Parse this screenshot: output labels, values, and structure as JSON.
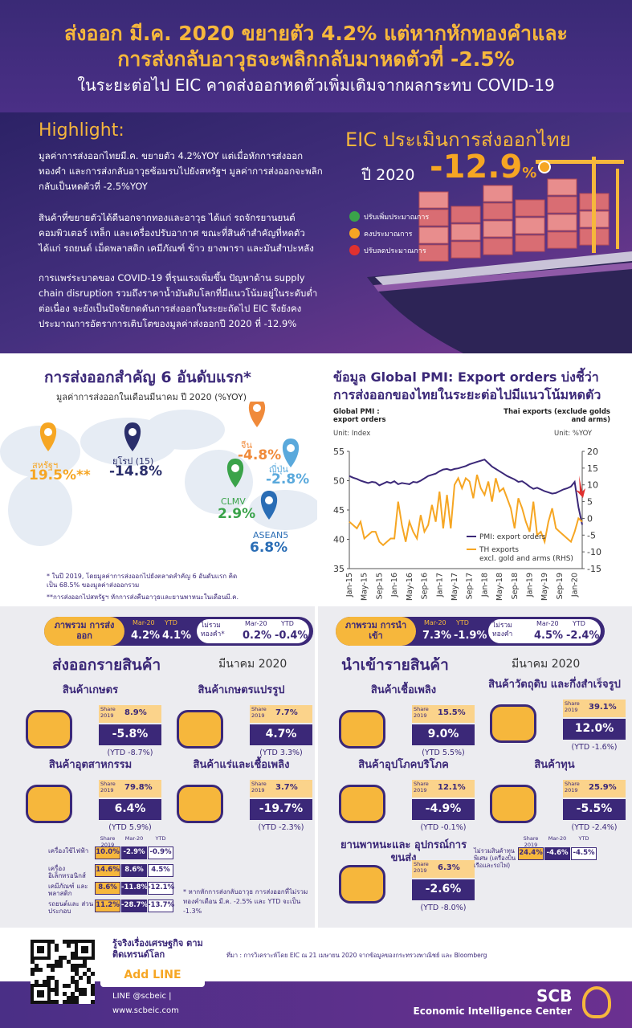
{
  "header": {
    "title_line1": "ส่งออก มี.ค. 2020 ขยายตัว 4.2% แต่หากหักทองคำและ",
    "title_line2": "การส่งกลับอาวุธจะพลิกกลับมาหดตัวที่ -2.5%",
    "subtitle": "ในระยะต่อไป EIC คาดส่งออกหดตัวเพิ่มเติมจากผลกระทบ COVID-19"
  },
  "highlight": {
    "title": "Highlight:",
    "paragraphs": [
      "มูลค่าการส่งออกไทยมี.ค. ขยายตัว 4.2%YOY แต่เมื่อหักการส่งออกทองคำ และการส่งกลับอาวุธซ้อมรบไปยังสหรัฐฯ มูลค่าการส่งออกจะพลิกกลับเป็นหดตัวที่ -2.5%YOY",
      "สินค้าที่ขยายตัวได้ดีนอกจากทองและอาวุธ ได้แก่ รถจักรยานยนต์ คอมพิวเตอร์ เหล็ก และเครื่องปรับอากาศ ขณะที่สินค้าสำคัญที่หดตัว ได้แก่ รถยนต์ เม็ดพลาสติก เคมีภัณฑ์ ข้าว ยางพารา และมันสำปะหลัง",
      "การแพร่ระบาดของ COVID-19 ที่รุนแรงเพิ่มขึ้น ปัญหาด้าน supply chain disruption รวมถึงราคาน้ำมันดิบโลกที่มีแนวโน้มอยู่ในระดับต่ำต่อเนื่อง จะยังเป็นปัจจัยกดดันการส่งออกในระยะถัดไป EIC จึงยังคงประมาณการอัตราการเติบโตของมูลค่าส่งออกปี 2020 ที่ -12.9%"
    ]
  },
  "assessment": {
    "title": "EIC ประเมินการส่งออกไทย",
    "year_label": "ปี 2020",
    "value": "-12.9",
    "unit": "%",
    "legend": [
      "ปรับเพิ่มประมาณการ",
      "คงประมาณการ",
      "ปรับลดประมาณการ"
    ]
  },
  "top6": {
    "title": "การส่งออกสำคัญ 6 อันดับแรก*",
    "subtitle": "มูลค่าการส่งออกในเดือนมีนาคม ปี 2020 (%YOY)",
    "markets": [
      {
        "name": "สหรัฐฯ",
        "value": "19.5%**",
        "color": "#f6a623"
      },
      {
        "name": "ยุโรป (15)",
        "value": "-14.8%",
        "color": "#2b2f6b"
      },
      {
        "name": "จีน",
        "value": "-4.8%",
        "color": "#f08a3a"
      },
      {
        "name": "ญี่ปุ่น",
        "value": "-2.8%",
        "color": "#5aa9dc"
      },
      {
        "name": "CLMV",
        "value": "2.9%",
        "color": "#3aa34a"
      },
      {
        "name": "ASEAN5",
        "value": "6.8%",
        "color": "#2a6db5"
      }
    ],
    "notes": [
      "* ในปี 2019, โดยมูลค่าการส่งออกไปยังตลาดสำคัญ 6 อันดับแรก คิดเป็น 68.5% ของมูลค่าส่งออกรวม",
      "**การส่งออกไปสหรัฐฯ หักการส่งคืนอาวุธและยานพาหนะในเดือนมี.ค."
    ]
  },
  "pmi_chart": {
    "type": "line",
    "title_line1": "ข้อมูล Global PMI: Export orders บ่งชี้ว่า",
    "title_line2": "การส่งออกของไทยในระยะต่อไปมีแนวโน้มหดตัว",
    "left_label": "Global PMI : export orders",
    "right_label": "Thai exports (exclude golds and arms)",
    "left_unit": "Unit: Index",
    "right_unit": "Unit: %YOY",
    "categories": [
      "Jan-15",
      null,
      null,
      null,
      "May-15",
      null,
      null,
      null,
      "Sep-15",
      null,
      null,
      null,
      "Jan-16",
      null,
      null,
      null,
      "May-16",
      null,
      null,
      null,
      "Sep-16",
      null,
      null,
      null,
      "Jan-17",
      null,
      null,
      null,
      "May-17",
      null,
      null,
      null,
      "Sep-17",
      null,
      null,
      null,
      "Jan-18",
      null,
      null,
      null,
      "May-18",
      null,
      null,
      null,
      "Sep-18",
      null,
      null,
      null,
      "Jan-19",
      null,
      null,
      null,
      "May-19",
      null,
      null,
      null,
      "Sep-19",
      null,
      null,
      null,
      "Jan-20",
      null,
      null
    ],
    "ylim": [
      35,
      55
    ],
    "yticks": [
      35,
      40,
      45,
      50,
      55
    ],
    "y2lim": [
      -15,
      20
    ],
    "y2ticks": [
      -15,
      -10,
      -5,
      0,
      5,
      10,
      15,
      20
    ],
    "series": [
      {
        "name": "PMI: export orders",
        "color": "#3b2878",
        "values": [
          50.8,
          50.5,
          50.3,
          50.0,
          49.8,
          49.6,
          49.8,
          49.7,
          49.2,
          49.5,
          49.8,
          49.6,
          49.9,
          49.4,
          49.6,
          49.5,
          49.4,
          49.8,
          49.7,
          50.0,
          50.4,
          50.8,
          51.0,
          51.2,
          51.6,
          51.9,
          52.0,
          51.8,
          52.0,
          52.1,
          52.3,
          52.5,
          52.8,
          53.0,
          53.2,
          53.4,
          53.6,
          53.0,
          52.4,
          52.0,
          51.6,
          51.2,
          50.8,
          50.5,
          50.2,
          49.8,
          49.9,
          49.5,
          49.0,
          48.6,
          48.8,
          48.5,
          48.2,
          48.0,
          47.8,
          47.9,
          48.2,
          48.5,
          48.7,
          49.0,
          49.8,
          45.5,
          42.5
        ]
      },
      {
        "name": "TH exports",
        "name_note": "excl. gold  and arms (RHS)",
        "color": "#f6a623",
        "axis": "y2",
        "values": [
          -1,
          -2,
          -3,
          -1,
          -6,
          -5,
          -4,
          -4,
          -7,
          -8,
          -7,
          -6,
          -6,
          5,
          -2,
          -7,
          -1,
          -4,
          -6,
          1,
          -4,
          -2,
          4,
          -1,
          8,
          -3,
          7,
          -3,
          10,
          12,
          9,
          12,
          11,
          6,
          13,
          9,
          7,
          11,
          5,
          12,
          8,
          9,
          6,
          3,
          -3,
          6,
          3,
          -1,
          -4,
          5,
          -5,
          -4,
          -7,
          -1,
          3,
          -3,
          -4,
          -5,
          -6,
          -7,
          -4,
          0,
          -1
        ]
      }
    ]
  },
  "exports": {
    "overview": {
      "label": "ภาพรวม การส่งออก",
      "col_headers": [
        "Mar-20",
        "YTD"
      ],
      "mar": "4.2%",
      "ytd": "4.1%",
      "ex_label": "ไม่รวม ทองคำ*",
      "ex_mar": "0.2%",
      "ex_ytd": "-0.4%"
    },
    "title": "ส่งออกรายสินค้า",
    "month": "มีนาคม 2020",
    "share_label": "Share 2019",
    "items": [
      {
        "name": "สินค้าเกษตร",
        "share": "8.9%",
        "mar": "-5.8%",
        "ytd": "(YTD -8.7%)"
      },
      {
        "name": "สินค้าเกษตรแปรรูป",
        "share": "7.7%",
        "mar": "4.7%",
        "ytd": "(YTD 3.3%)"
      },
      {
        "name": "สินค้าอุตสาหกรรม",
        "share": "79.8%",
        "mar": "6.4%",
        "ytd": "(YTD 5.9%)"
      },
      {
        "name": "สินค้าแร่และเชื้อเพลิง",
        "share": "3.7%",
        "mar": "-19.7%",
        "ytd": "(YTD -2.3%)"
      }
    ],
    "industry_table": {
      "headers": [
        "Share 2019",
        "Mar-20",
        "YTD"
      ],
      "rows": [
        [
          "เครื่องใช้ไฟฟ้า",
          "10.0%",
          "-2.9%",
          "-0.9%"
        ],
        [
          "เครื่องอิเล็กทรอนิกส์",
          "14.6%",
          "8.6%",
          "4.5%"
        ],
        [
          "เคมีภัณฑ์ และพลาสติก",
          "8.6%",
          "-11.8%",
          "-12.1%"
        ],
        [
          "รถยนต์และ ส่วนประกอบ",
          "11.2%",
          "-28.7%",
          "-13.7%"
        ]
      ]
    },
    "footnote": "* หากหักการส่งกลับอาวุธ การส่งออกที่ไม่รวมทองคำเดือน มี.ค. -2.5% และ YTD จะเป็น -1.3%"
  },
  "imports": {
    "overview": {
      "label": "ภาพรวม การนำเข้า",
      "col_headers": [
        "Mar-20",
        "YTD"
      ],
      "mar": "7.3%",
      "ytd": "-1.9%",
      "ex_label": "ไม่รวม ทองคำ",
      "ex_mar": "4.5%",
      "ex_ytd": "-2.4%"
    },
    "title": "นำเข้ารายสินค้า",
    "month": "มีนาคม 2020",
    "share_label": "Share 2019",
    "items": [
      {
        "name": "สินค้าเชื้อเพลิง",
        "share": "15.5%",
        "mar": "9.0%",
        "ytd": "(YTD 5.5%)"
      },
      {
        "name": "สินค้าวัตถุดิบ และกึ่งสำเร็จรูป",
        "share": "39.1%",
        "mar": "12.0%",
        "ytd": "(YTD -1.6%)"
      },
      {
        "name": "สินค้าอุปโภคบริโภค",
        "share": "12.1%",
        "mar": "-4.9%",
        "ytd": "(YTD -0.1%)"
      },
      {
        "name": "สินค้าทุน",
        "share": "25.9%",
        "mar": "-5.5%",
        "ytd": "(YTD -2.4%)"
      },
      {
        "name": "ยานพาหนะและ อุปกรณ์การขนส่ง",
        "share": "6.3%",
        "mar": "-2.6%",
        "ytd": "(YTD -8.0%)"
      }
    ],
    "capital_excl": {
      "headers": [
        "Share 2019",
        "Mar-20",
        "YTD"
      ],
      "label": "ไม่รวมสินค้าทุนพิเศษ (เครื่องบิน เรือและรถไฟ)",
      "share": "24.4%",
      "mar": "-4.6%",
      "ytd": "-4.5%"
    }
  },
  "footer": {
    "tagline": "รู้จริงเรื่องเศรษฐกิจ ตามติดเทรนด์โลก",
    "add_line": "Add LINE",
    "line_id": "LINE @scbeic |",
    "website": "www.scbeic.com",
    "source": "ที่มา : การวิเคราะห์โดย EIC ณ 21 เมษายน 2020 จากข้อมูลของกระทรวงพาณิชย์ และ Bloomberg",
    "brand": "SCB",
    "brand_sub": "Economic Intelligence Center"
  }
}
